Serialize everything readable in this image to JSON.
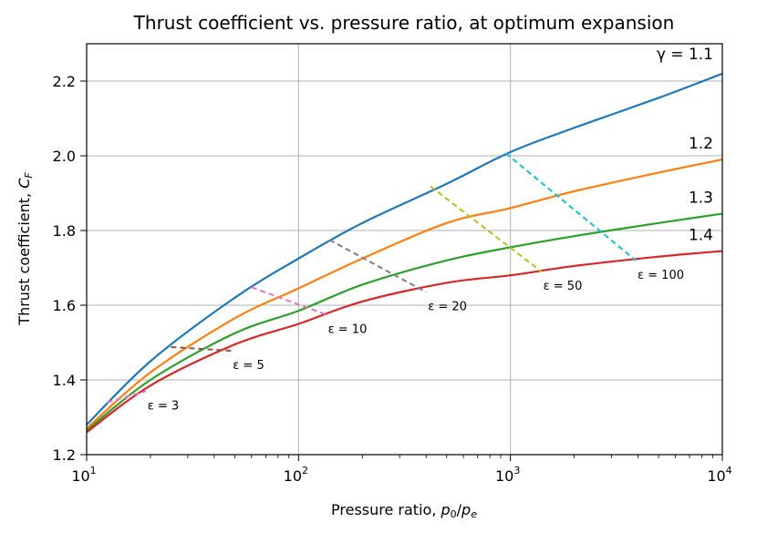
{
  "chart_data": {
    "type": "line",
    "title": "Thrust coefficient vs. pressure ratio, at optimum expansion",
    "xlabel": "Pressure ratio, p₀/pₑ",
    "ylabel": "Thrust coefficient, C_F",
    "xscale": "log",
    "xlim": [
      10,
      10000
    ],
    "ylim": [
      1.2,
      2.3
    ],
    "grid": true,
    "x_ticks": [
      {
        "value": 10,
        "base": "10",
        "exp": "1"
      },
      {
        "value": 100,
        "base": "10",
        "exp": "2"
      },
      {
        "value": 1000,
        "base": "10",
        "exp": "3"
      },
      {
        "value": 10000,
        "base": "10",
        "exp": "4"
      }
    ],
    "y_ticks": [
      1.2,
      1.4,
      1.6,
      1.8,
      2.0,
      2.2
    ],
    "series": [
      {
        "name": "γ = 1.1",
        "label": "γ = 1.1",
        "color": "#1f77b4",
        "points": [
          [
            10,
            1.28
          ],
          [
            20,
            1.45
          ],
          [
            50,
            1.62
          ],
          [
            100,
            1.725
          ],
          [
            200,
            1.82
          ],
          [
            500,
            1.925
          ],
          [
            1000,
            2.01
          ],
          [
            2000,
            2.075
          ],
          [
            5000,
            2.155
          ],
          [
            10000,
            2.22
          ]
        ]
      },
      {
        "name": "1.2",
        "label": "1.2",
        "color": "#ff7f0e",
        "points": [
          [
            10,
            1.27
          ],
          [
            20,
            1.42
          ],
          [
            50,
            1.565
          ],
          [
            100,
            1.645
          ],
          [
            200,
            1.725
          ],
          [
            500,
            1.82
          ],
          [
            1000,
            1.86
          ],
          [
            2000,
            1.905
          ],
          [
            5000,
            1.955
          ],
          [
            10000,
            1.99
          ]
        ]
      },
      {
        "name": "1.3",
        "label": "1.3",
        "color": "#2ca02c",
        "points": [
          [
            10,
            1.265
          ],
          [
            20,
            1.4
          ],
          [
            50,
            1.525
          ],
          [
            100,
            1.585
          ],
          [
            200,
            1.655
          ],
          [
            500,
            1.72
          ],
          [
            1000,
            1.755
          ],
          [
            2000,
            1.785
          ],
          [
            5000,
            1.82
          ],
          [
            10000,
            1.845
          ]
        ]
      },
      {
        "name": "1.4",
        "label": "1.4",
        "color": "#d62728",
        "points": [
          [
            10,
            1.26
          ],
          [
            20,
            1.385
          ],
          [
            50,
            1.495
          ],
          [
            100,
            1.55
          ],
          [
            200,
            1.61
          ],
          [
            500,
            1.66
          ],
          [
            1000,
            1.68
          ],
          [
            2000,
            1.705
          ],
          [
            5000,
            1.73
          ],
          [
            10000,
            1.745
          ]
        ]
      }
    ],
    "expansion_ratio_lines": [
      {
        "label": "ε = 3",
        "color": "#e377c2",
        "points": [
          [
            12.5,
            1.34
          ],
          [
            19,
            1.37
          ]
        ]
      },
      {
        "label": "ε = 5",
        "color": "#8c564b",
        "points": [
          [
            25,
            1.488
          ],
          [
            48,
            1.478
          ]
        ]
      },
      {
        "label": "ε = 10",
        "color": "#e377c2",
        "points": [
          [
            60,
            1.648
          ],
          [
            135,
            1.575
          ]
        ]
      },
      {
        "label": "ε = 20",
        "color": "#7f7f7f",
        "points": [
          [
            140,
            1.775
          ],
          [
            400,
            1.635
          ]
        ]
      },
      {
        "label": "ε = 50",
        "color": "#bcbd22",
        "points": [
          [
            420,
            1.918
          ],
          [
            1400,
            1.69
          ]
        ]
      },
      {
        "label": "ε = 100",
        "color": "#17becf",
        "points": [
          [
            950,
            2.007
          ],
          [
            3900,
            1.72
          ]
        ]
      }
    ]
  }
}
